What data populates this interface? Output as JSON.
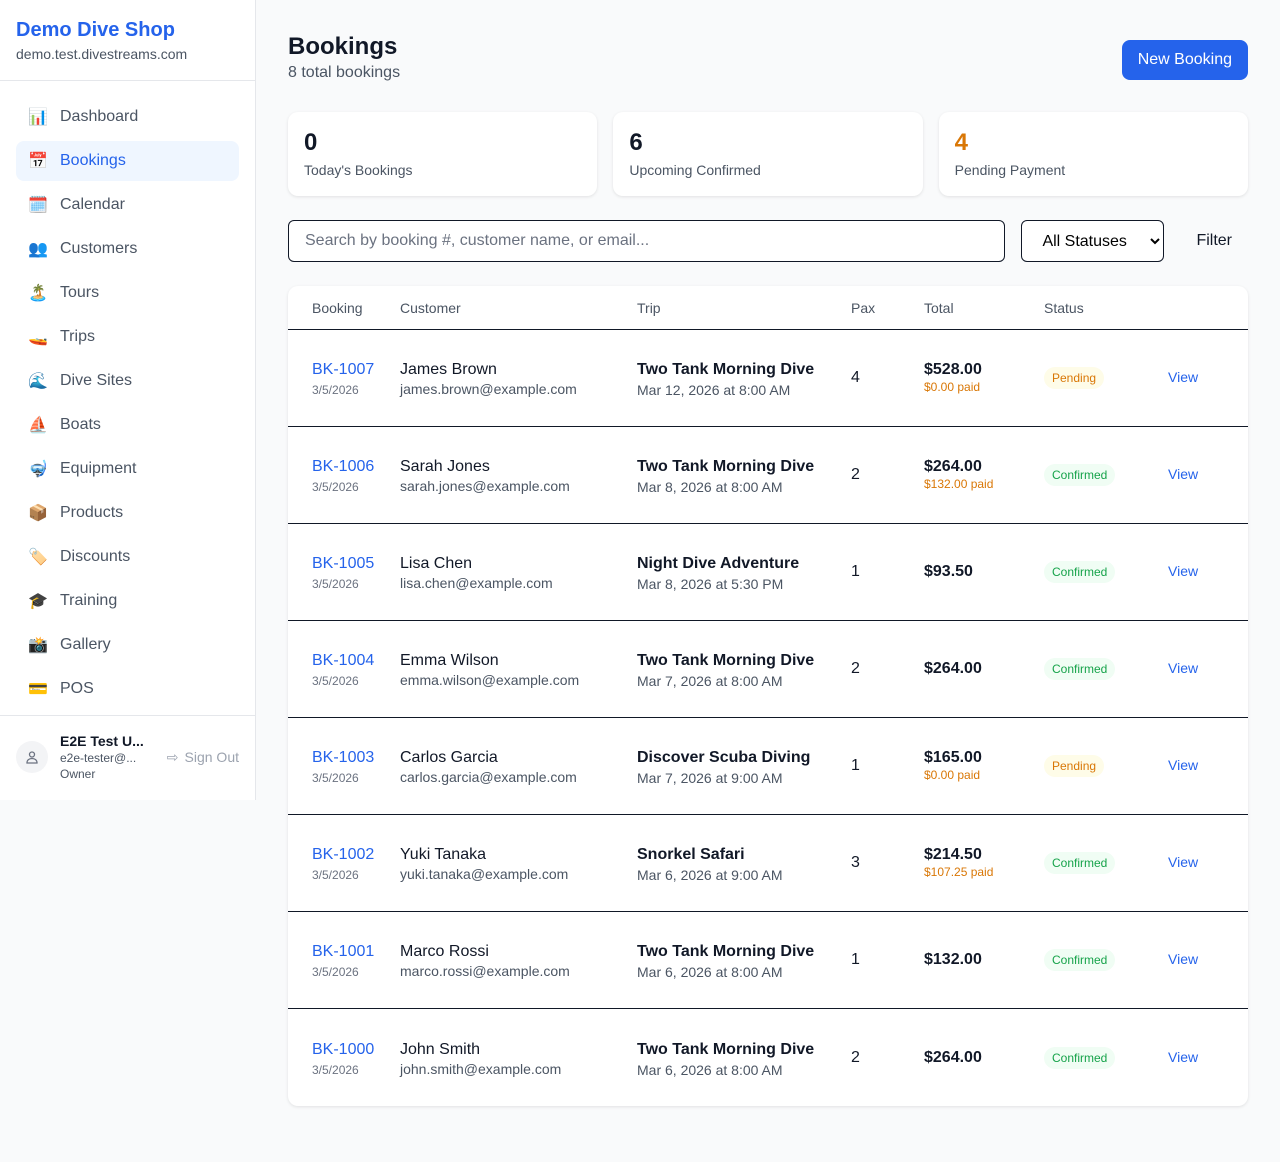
{
  "sidebar": {
    "brand": "Demo Dive Shop",
    "domain": "demo.test.divestreams.com",
    "items": [
      {
        "label": "Dashboard",
        "icon": "📊",
        "name": "chart-icon"
      },
      {
        "label": "Bookings",
        "icon": "📅",
        "name": "calendar-icon",
        "active": true
      },
      {
        "label": "Calendar",
        "icon": "🗓️",
        "name": "spiral-calendar-icon"
      },
      {
        "label": "Customers",
        "icon": "👥",
        "name": "users-icon"
      },
      {
        "label": "Tours",
        "icon": "🏝️",
        "name": "island-icon"
      },
      {
        "label": "Trips",
        "icon": "🚤",
        "name": "boat-icon"
      },
      {
        "label": "Dive Sites",
        "icon": "🌊",
        "name": "wave-icon"
      },
      {
        "label": "Boats",
        "icon": "⛵",
        "name": "sailboat-icon"
      },
      {
        "label": "Equipment",
        "icon": "🤿",
        "name": "diving-mask-icon"
      },
      {
        "label": "Products",
        "icon": "📦",
        "name": "package-icon"
      },
      {
        "label": "Discounts",
        "icon": "🏷️",
        "name": "tag-icon"
      },
      {
        "label": "Training",
        "icon": "🎓",
        "name": "graduation-cap-icon"
      },
      {
        "label": "Gallery",
        "icon": "📸",
        "name": "camera-icon"
      },
      {
        "label": "POS",
        "icon": "💳",
        "name": "credit-card-icon"
      }
    ],
    "user": {
      "name": "E2E Test U...",
      "email": "e2e-tester@...",
      "role": "Owner",
      "signout": "Sign Out"
    }
  },
  "header": {
    "title": "Bookings",
    "subtitle": "8 total bookings",
    "new_button": "New Booking"
  },
  "stats": [
    {
      "value": "0",
      "label": "Today's Bookings",
      "color": "#111827"
    },
    {
      "value": "6",
      "label": "Upcoming Confirmed",
      "color": "#111827"
    },
    {
      "value": "4",
      "label": "Pending Payment",
      "color": "#d97706"
    }
  ],
  "filters": {
    "search_placeholder": "Search by booking #, customer name, or email...",
    "status_selected": "All Statuses",
    "filter_button": "Filter"
  },
  "table": {
    "columns": [
      "Booking",
      "Customer",
      "Trip",
      "Pax",
      "Total",
      "Status",
      ""
    ],
    "rows": [
      {
        "id": "BK-1007",
        "date": "3/5/2026",
        "customer": "James Brown",
        "email": "james.brown@example.com",
        "trip": "Two Tank Morning Dive",
        "trip_date": "Mar 12, 2026 at 8:00 AM",
        "pax": "4",
        "total": "$528.00",
        "paid": "$0.00 paid",
        "status": "Pending",
        "action": "View"
      },
      {
        "id": "BK-1006",
        "date": "3/5/2026",
        "customer": "Sarah Jones",
        "email": "sarah.jones@example.com",
        "trip": "Two Tank Morning Dive",
        "trip_date": "Mar 8, 2026 at 8:00 AM",
        "pax": "2",
        "total": "$264.00",
        "paid": "$132.00 paid",
        "status": "Confirmed",
        "action": "View"
      },
      {
        "id": "BK-1005",
        "date": "3/5/2026",
        "customer": "Lisa Chen",
        "email": "lisa.chen@example.com",
        "trip": "Night Dive Adventure",
        "trip_date": "Mar 8, 2026 at 5:30 PM",
        "pax": "1",
        "total": "$93.50",
        "paid": "",
        "status": "Confirmed",
        "action": "View"
      },
      {
        "id": "BK-1004",
        "date": "3/5/2026",
        "customer": "Emma Wilson",
        "email": "emma.wilson@example.com",
        "trip": "Two Tank Morning Dive",
        "trip_date": "Mar 7, 2026 at 8:00 AM",
        "pax": "2",
        "total": "$264.00",
        "paid": "",
        "status": "Confirmed",
        "action": "View"
      },
      {
        "id": "BK-1003",
        "date": "3/5/2026",
        "customer": "Carlos Garcia",
        "email": "carlos.garcia@example.com",
        "trip": "Discover Scuba Diving",
        "trip_date": "Mar 7, 2026 at 9:00 AM",
        "pax": "1",
        "total": "$165.00",
        "paid": "$0.00 paid",
        "status": "Pending",
        "action": "View"
      },
      {
        "id": "BK-1002",
        "date": "3/5/2026",
        "customer": "Yuki Tanaka",
        "email": "yuki.tanaka@example.com",
        "trip": "Snorkel Safari",
        "trip_date": "Mar 6, 2026 at 9:00 AM",
        "pax": "3",
        "total": "$214.50",
        "paid": "$107.25 paid",
        "status": "Confirmed",
        "action": "View"
      },
      {
        "id": "BK-1001",
        "date": "3/5/2026",
        "customer": "Marco Rossi",
        "email": "marco.rossi@example.com",
        "trip": "Two Tank Morning Dive",
        "trip_date": "Mar 6, 2026 at 8:00 AM",
        "pax": "1",
        "total": "$132.00",
        "paid": "",
        "status": "Confirmed",
        "action": "View"
      },
      {
        "id": "BK-1000",
        "date": "3/5/2026",
        "customer": "John Smith",
        "email": "john.smith@example.com",
        "trip": "Two Tank Morning Dive",
        "trip_date": "Mar 6, 2026 at 8:00 AM",
        "pax": "2",
        "total": "$264.00",
        "paid": "",
        "status": "Confirmed",
        "action": "View"
      }
    ]
  }
}
